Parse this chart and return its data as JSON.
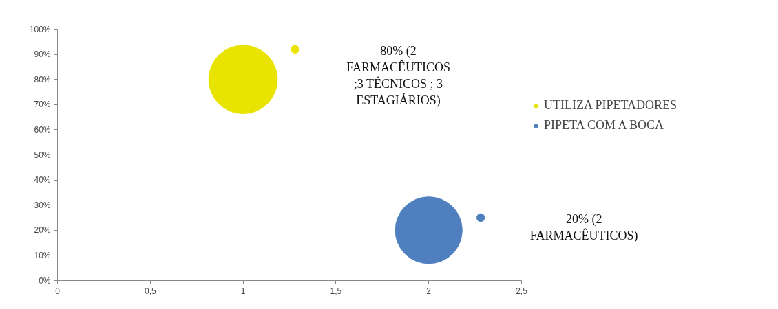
{
  "chart_data": {
    "type": "bubble",
    "series": [
      {
        "name": "UTILIZA PIPETADORES",
        "color": "#e8e400",
        "x": [
          1,
          1.28
        ],
        "values": [
          80,
          92
        ],
        "sizes": [
          1,
          0.014
        ]
      },
      {
        "name": "PIPETA COM A BOCA",
        "color": "#4f7fbf",
        "x": [
          2,
          2.28
        ],
        "values": [
          20,
          25
        ],
        "sizes": [
          0.95,
          0.014
        ]
      }
    ],
    "annotations": [
      "80% (2 FARMACÊUTICOS ;3 TÉCNICOS ; 3 ESTAGIÁRIOS)",
      "20% (2 FARMACÊUTICOS)"
    ],
    "xlim": [
      0,
      2.5
    ],
    "xticks": [
      0,
      {
        "value": 0.5,
        "label": "0,5"
      },
      1,
      {
        "value": 1.5,
        "label": "1,5"
      },
      2,
      {
        "value": 2.5,
        "label": "2,5"
      }
    ],
    "ylim": [
      0,
      100
    ],
    "yticks": [
      {
        "value": 0,
        "label": "0%"
      },
      {
        "value": 10,
        "label": "10%"
      },
      {
        "value": 20,
        "label": "20%"
      },
      {
        "value": 30,
        "label": "30%"
      },
      {
        "value": 40,
        "label": "40%"
      },
      {
        "value": 50,
        "label": "50%"
      },
      {
        "value": 60,
        "label": "60%"
      },
      {
        "value": 70,
        "label": "70%"
      },
      {
        "value": 80,
        "label": "80%"
      },
      {
        "value": 90,
        "label": "90%"
      },
      {
        "value": 100,
        "label": "100%"
      }
    ],
    "grid": false,
    "legend": "right"
  }
}
